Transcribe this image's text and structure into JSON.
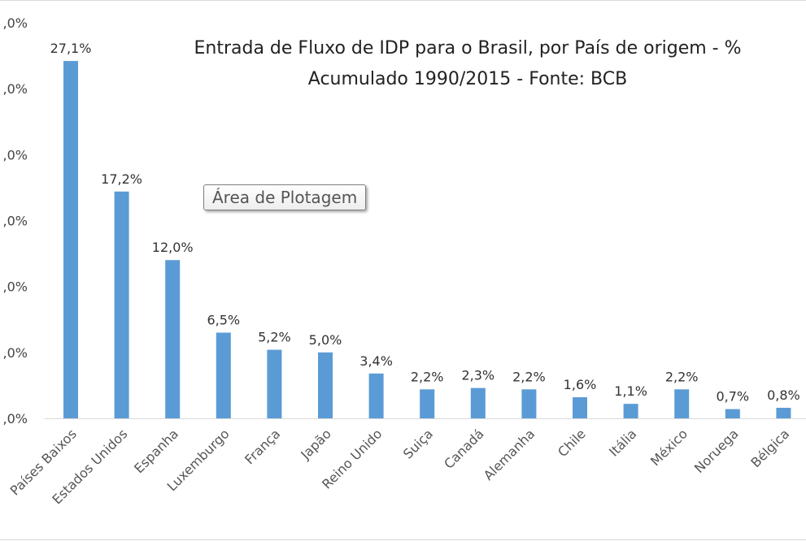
{
  "chart": {
    "title_line1": "Entrada de Fluxo de IDP para o Brasil, por País de origem - %",
    "title_line2": "Acumulado 1990/2015 - Fonte: BCB",
    "tooltip": "Área de Plotagem"
  },
  "chart_data": {
    "type": "bar",
    "title": "Entrada de Fluxo de IDP para o Brasil, por País de origem - % Acumulado 1990/2015 - Fonte: BCB",
    "categories": [
      "Países Baixos",
      "Estados Unidos",
      "Espanha",
      "Luxemburgo",
      "França",
      "Japão",
      "Reino Unido",
      "Suiça",
      "Canadá",
      "Alemanha",
      "Chile",
      "Itália",
      "México",
      "Noruega",
      "Bélgica"
    ],
    "values": [
      27.1,
      17.2,
      12.0,
      6.5,
      5.2,
      5.0,
      3.4,
      2.2,
      2.3,
      2.2,
      1.6,
      1.1,
      2.2,
      0.7,
      0.8
    ],
    "value_labels": [
      "27,1%",
      "17,2%",
      "12,0%",
      "6,5%",
      "5,2%",
      "5,0%",
      "3,4%",
      "2,2%",
      "2,3%",
      "2,2%",
      "1,6%",
      "1,1%",
      "2,2%",
      "0,7%",
      "0,8%"
    ],
    "ytick_labels": [
      ",0%",
      ",0%",
      ",0%",
      ",0%",
      ",0%",
      ",0%",
      ",0%"
    ],
    "ylim": [
      0,
      30
    ],
    "bar_color": "#5b9bd5",
    "grid": false,
    "legend": "none"
  }
}
